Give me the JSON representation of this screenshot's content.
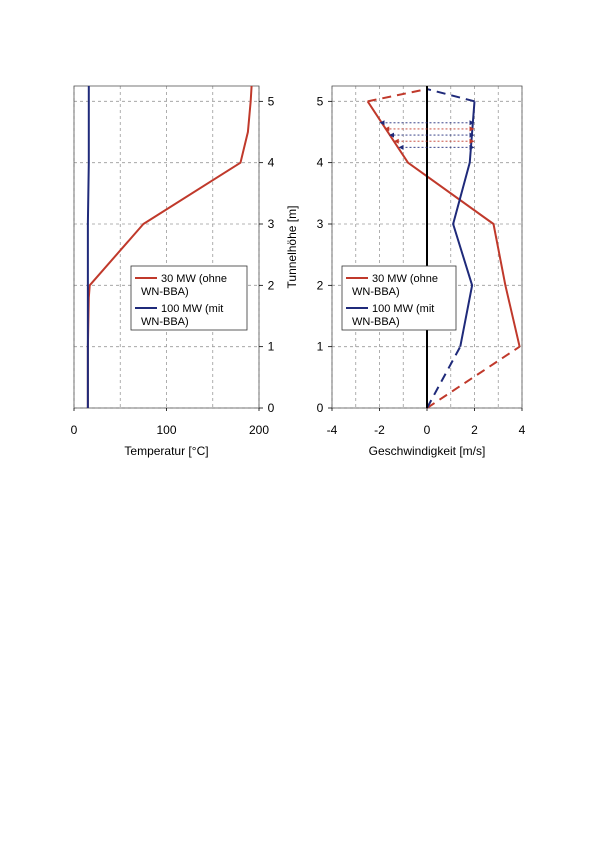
{
  "chart_data": [
    {
      "type": "line",
      "xlabel": "Temperatur [°C]",
      "ylabel": "",
      "xlim": [
        0,
        200
      ],
      "ylim": [
        0,
        5.25
      ],
      "xticks": [
        "0",
        "100",
        "200"
      ],
      "yticks": [
        "0",
        "1",
        "2",
        "3",
        "4",
        "5"
      ],
      "grid": true,
      "legend_position": "center-right",
      "series": [
        {
          "name": "30 MW (ohne WN-BBA)",
          "color": "#c0392b",
          "dashed": false,
          "points": [
            [
              15,
              0
            ],
            [
              15,
              1
            ],
            [
              16,
              1.8
            ],
            [
              17,
              2.0
            ],
            [
              75,
              3.0
            ],
            [
              180,
              4.0
            ],
            [
              188,
              4.5
            ],
            [
              191,
              5.0
            ],
            [
              192,
              5.25
            ]
          ]
        },
        {
          "name": "100 MW (mit WN-BBA)",
          "color": "#1f2a7a",
          "dashed": false,
          "points": [
            [
              15,
              0
            ],
            [
              15,
              1
            ],
            [
              15,
              2
            ],
            [
              15,
              3
            ],
            [
              16,
              4
            ],
            [
              16,
              5
            ],
            [
              16,
              5.25
            ]
          ]
        }
      ]
    },
    {
      "type": "line",
      "xlabel": "Geschwindigkeit [m/s]",
      "ylabel": "Tunnelhöhe [m]",
      "xlim": [
        -4,
        4
      ],
      "ylim": [
        0,
        5.25
      ],
      "xticks": [
        "-4",
        "-2",
        "0",
        "2",
        "4"
      ],
      "yticks": [
        "0",
        "1",
        "2",
        "3",
        "4",
        "5"
      ],
      "grid": true,
      "legend_position": "center-left",
      "series": [
        {
          "name": "30 MW (ohne WN-BBA)",
          "color": "#c0392b",
          "dashed": false,
          "points": [
            [
              3.9,
              1.0
            ],
            [
              3.3,
              2.0
            ],
            [
              2.8,
              3.0
            ],
            [
              -0.8,
              4.0
            ],
            [
              -2.5,
              5.0
            ]
          ]
        },
        {
          "name": "",
          "color": "#c0392b",
          "dashed": true,
          "points": [
            [
              0,
              0
            ],
            [
              3.9,
              1.0
            ]
          ]
        },
        {
          "name": "",
          "color": "#c0392b",
          "dashed": true,
          "points": [
            [
              -2.5,
              5.0
            ],
            [
              0,
              5.2
            ]
          ]
        },
        {
          "name": "100 MW (mit WN-BBA)",
          "color": "#1f2a7a",
          "dashed": false,
          "points": [
            [
              1.4,
              1.0
            ],
            [
              1.9,
              2.0
            ],
            [
              1.1,
              3.0
            ],
            [
              1.8,
              4.0
            ],
            [
              2.0,
              5.0
            ]
          ]
        },
        {
          "name": "",
          "color": "#1f2a7a",
          "dashed": true,
          "points": [
            [
              0,
              0
            ],
            [
              1.4,
              1.0
            ]
          ]
        },
        {
          "name": "",
          "color": "#1f2a7a",
          "dashed": true,
          "points": [
            [
              2.0,
              5.0
            ],
            [
              0,
              5.2
            ]
          ]
        },
        {
          "name": "",
          "color": "#000000",
          "dashed": false,
          "points": [
            [
              0,
              0
            ],
            [
              0,
              5.25
            ]
          ]
        }
      ],
      "arrows": [
        {
          "from": 2.0,
          "to": -2.0,
          "y": 4.65,
          "color": "#1f2a7a"
        },
        {
          "from": 2.0,
          "to": -1.8,
          "y": 4.55,
          "color": "#c0392b"
        },
        {
          "from": 2.0,
          "to": -1.6,
          "y": 4.45,
          "color": "#1f2a7a"
        },
        {
          "from": 2.0,
          "to": -1.4,
          "y": 4.35,
          "color": "#c0392b"
        },
        {
          "from": 2.0,
          "to": -1.2,
          "y": 4.25,
          "color": "#1f2a7a"
        }
      ]
    }
  ]
}
